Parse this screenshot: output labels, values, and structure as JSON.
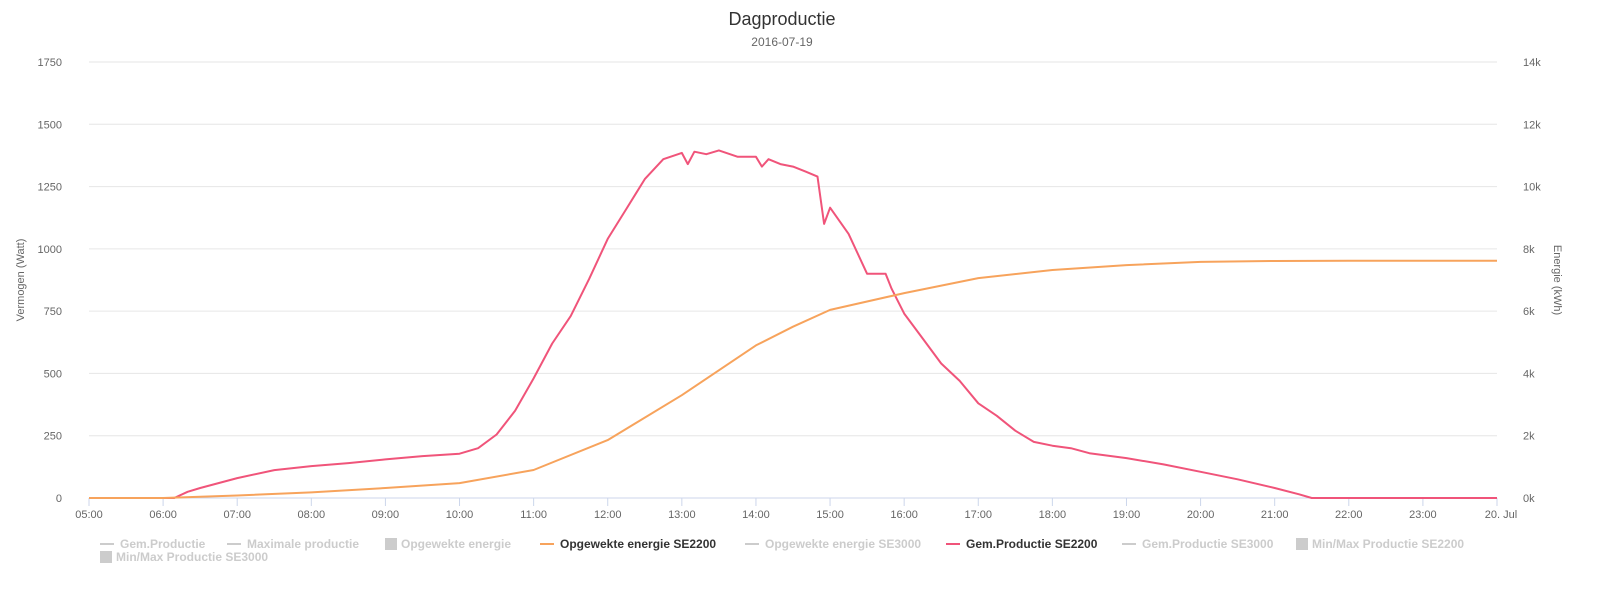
{
  "chart_data": {
    "type": "line",
    "title": "Dagproductie",
    "subtitle": "2016-07-19",
    "ylabel": "Vermogen (Watt)",
    "y2label": "Energie (kWh)",
    "ylim": [
      0,
      1750
    ],
    "y2lim": [
      0,
      14000
    ],
    "yticks": [
      "0",
      "250",
      "500",
      "750",
      "1000",
      "1250",
      "1500",
      "1750"
    ],
    "y2ticks": [
      "0k",
      "2k",
      "4k",
      "6k",
      "8k",
      "10k",
      "12k",
      "14k"
    ],
    "xticks": [
      "05:00",
      "06:00",
      "07:00",
      "08:00",
      "09:00",
      "10:00",
      "11:00",
      "12:00",
      "13:00",
      "14:00",
      "15:00",
      "16:00",
      "17:00",
      "18:00",
      "19:00",
      "20:00",
      "21:00",
      "22:00",
      "23:00",
      "20. Jul"
    ],
    "xlim_hours": [
      5,
      24
    ],
    "grid": true,
    "series": [
      {
        "name": "Gem.Productie SE2200",
        "axis": "left",
        "color": "#f0547a",
        "x": [
          5,
          6.15,
          6.33,
          6.5,
          7,
          7.5,
          8,
          8.5,
          9,
          9.5,
          10,
          10.25,
          10.5,
          10.75,
          11,
          11.25,
          11.5,
          11.75,
          12,
          12.25,
          12.5,
          12.75,
          13,
          13.08,
          13.17,
          13.33,
          13.5,
          13.75,
          14,
          14.08,
          14.17,
          14.33,
          14.5,
          14.67,
          14.83,
          14.92,
          15,
          15.25,
          15.5,
          15.75,
          15.83,
          16,
          16.25,
          16.5,
          16.75,
          17,
          17.25,
          17.5,
          17.75,
          18,
          18.25,
          18.5,
          19,
          19.5,
          20,
          20.5,
          21,
          21.33,
          21.5,
          24
        ],
        "values": [
          0,
          0,
          25,
          40,
          80,
          112,
          128,
          140,
          155,
          168,
          178,
          200,
          255,
          350,
          480,
          620,
          730,
          880,
          1040,
          1160,
          1280,
          1360,
          1385,
          1340,
          1390,
          1380,
          1395,
          1370,
          1370,
          1330,
          1360,
          1340,
          1330,
          1310,
          1290,
          1100,
          1165,
          1060,
          900,
          900,
          840,
          740,
          640,
          540,
          470,
          380,
          330,
          270,
          225,
          210,
          200,
          180,
          160,
          135,
          105,
          75,
          40,
          15,
          0,
          0
        ]
      },
      {
        "name": "Opgewekte energie SE2200",
        "axis": "right",
        "color": "#f7a35c",
        "x": [
          5,
          6,
          7,
          8,
          9,
          10,
          11,
          12,
          13,
          14,
          14.5,
          15,
          16,
          17,
          18,
          19,
          20,
          21,
          22,
          24
        ],
        "values": [
          0,
          0,
          80,
          180,
          320,
          480,
          900,
          1860,
          3300,
          4900,
          5500,
          6040,
          6580,
          7060,
          7320,
          7480,
          7580,
          7610,
          7620,
          7620
        ]
      }
    ],
    "legend": {
      "placement": "bottom",
      "items": [
        {
          "label": "Gem.Productie",
          "symbol": "line",
          "active": false
        },
        {
          "label": "Maximale productie",
          "symbol": "line",
          "active": false
        },
        {
          "label": "Opgewekte energie",
          "symbol": "box",
          "active": false
        },
        {
          "label": "Opgewekte energie SE2200",
          "symbol": "line",
          "active": true,
          "color": "#f7a35c"
        },
        {
          "label": "Opgewekte energie SE3000",
          "symbol": "line",
          "active": false
        },
        {
          "label": "Gem.Productie SE2200",
          "symbol": "line",
          "active": true,
          "color": "#f0547a"
        },
        {
          "label": "Gem.Productie SE3000",
          "symbol": "line",
          "active": false
        },
        {
          "label": "Min/Max Productie SE2200",
          "symbol": "box",
          "active": false
        },
        {
          "label": "Min/Max Productie SE3000",
          "symbol": "box",
          "active": false
        }
      ]
    }
  }
}
